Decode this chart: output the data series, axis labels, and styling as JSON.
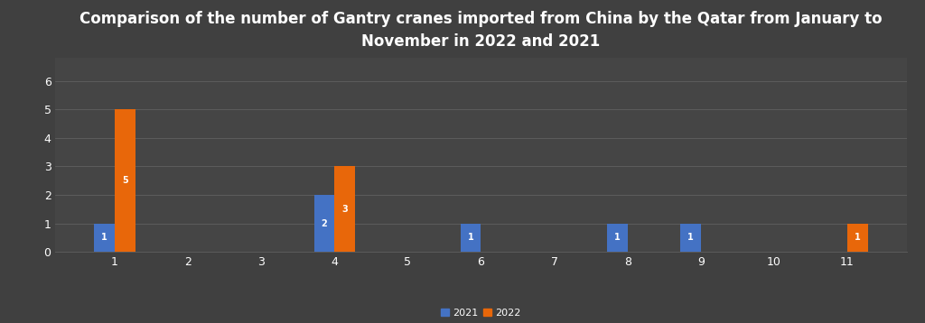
{
  "title": "Comparison of the number of Gantry cranes imported from China by the Qatar from January to\nNovember in 2022 and 2021",
  "months": [
    1,
    2,
    3,
    4,
    5,
    6,
    7,
    8,
    9,
    10,
    11
  ],
  "values_2021": [
    1,
    0,
    0,
    2,
    0,
    1,
    0,
    1,
    1,
    0,
    0
  ],
  "values_2022": [
    5,
    0,
    0,
    3,
    0,
    0,
    0,
    0,
    0,
    0,
    1
  ],
  "color_2021": "#4472C4",
  "color_2022": "#E8670A",
  "background_color": "#404040",
  "plot_bg_color": "#454545",
  "text_color": "#ffffff",
  "grid_color": "#606060",
  "bar_width": 0.28,
  "ylim": [
    0,
    6.8
  ],
  "yticks": [
    0,
    1,
    2,
    3,
    4,
    5,
    6
  ],
  "title_fontsize": 12,
  "tick_fontsize": 9,
  "legend_labels": [
    "2021",
    "2022"
  ],
  "bar_label_fontsize": 7,
  "legend_fontsize": 8
}
